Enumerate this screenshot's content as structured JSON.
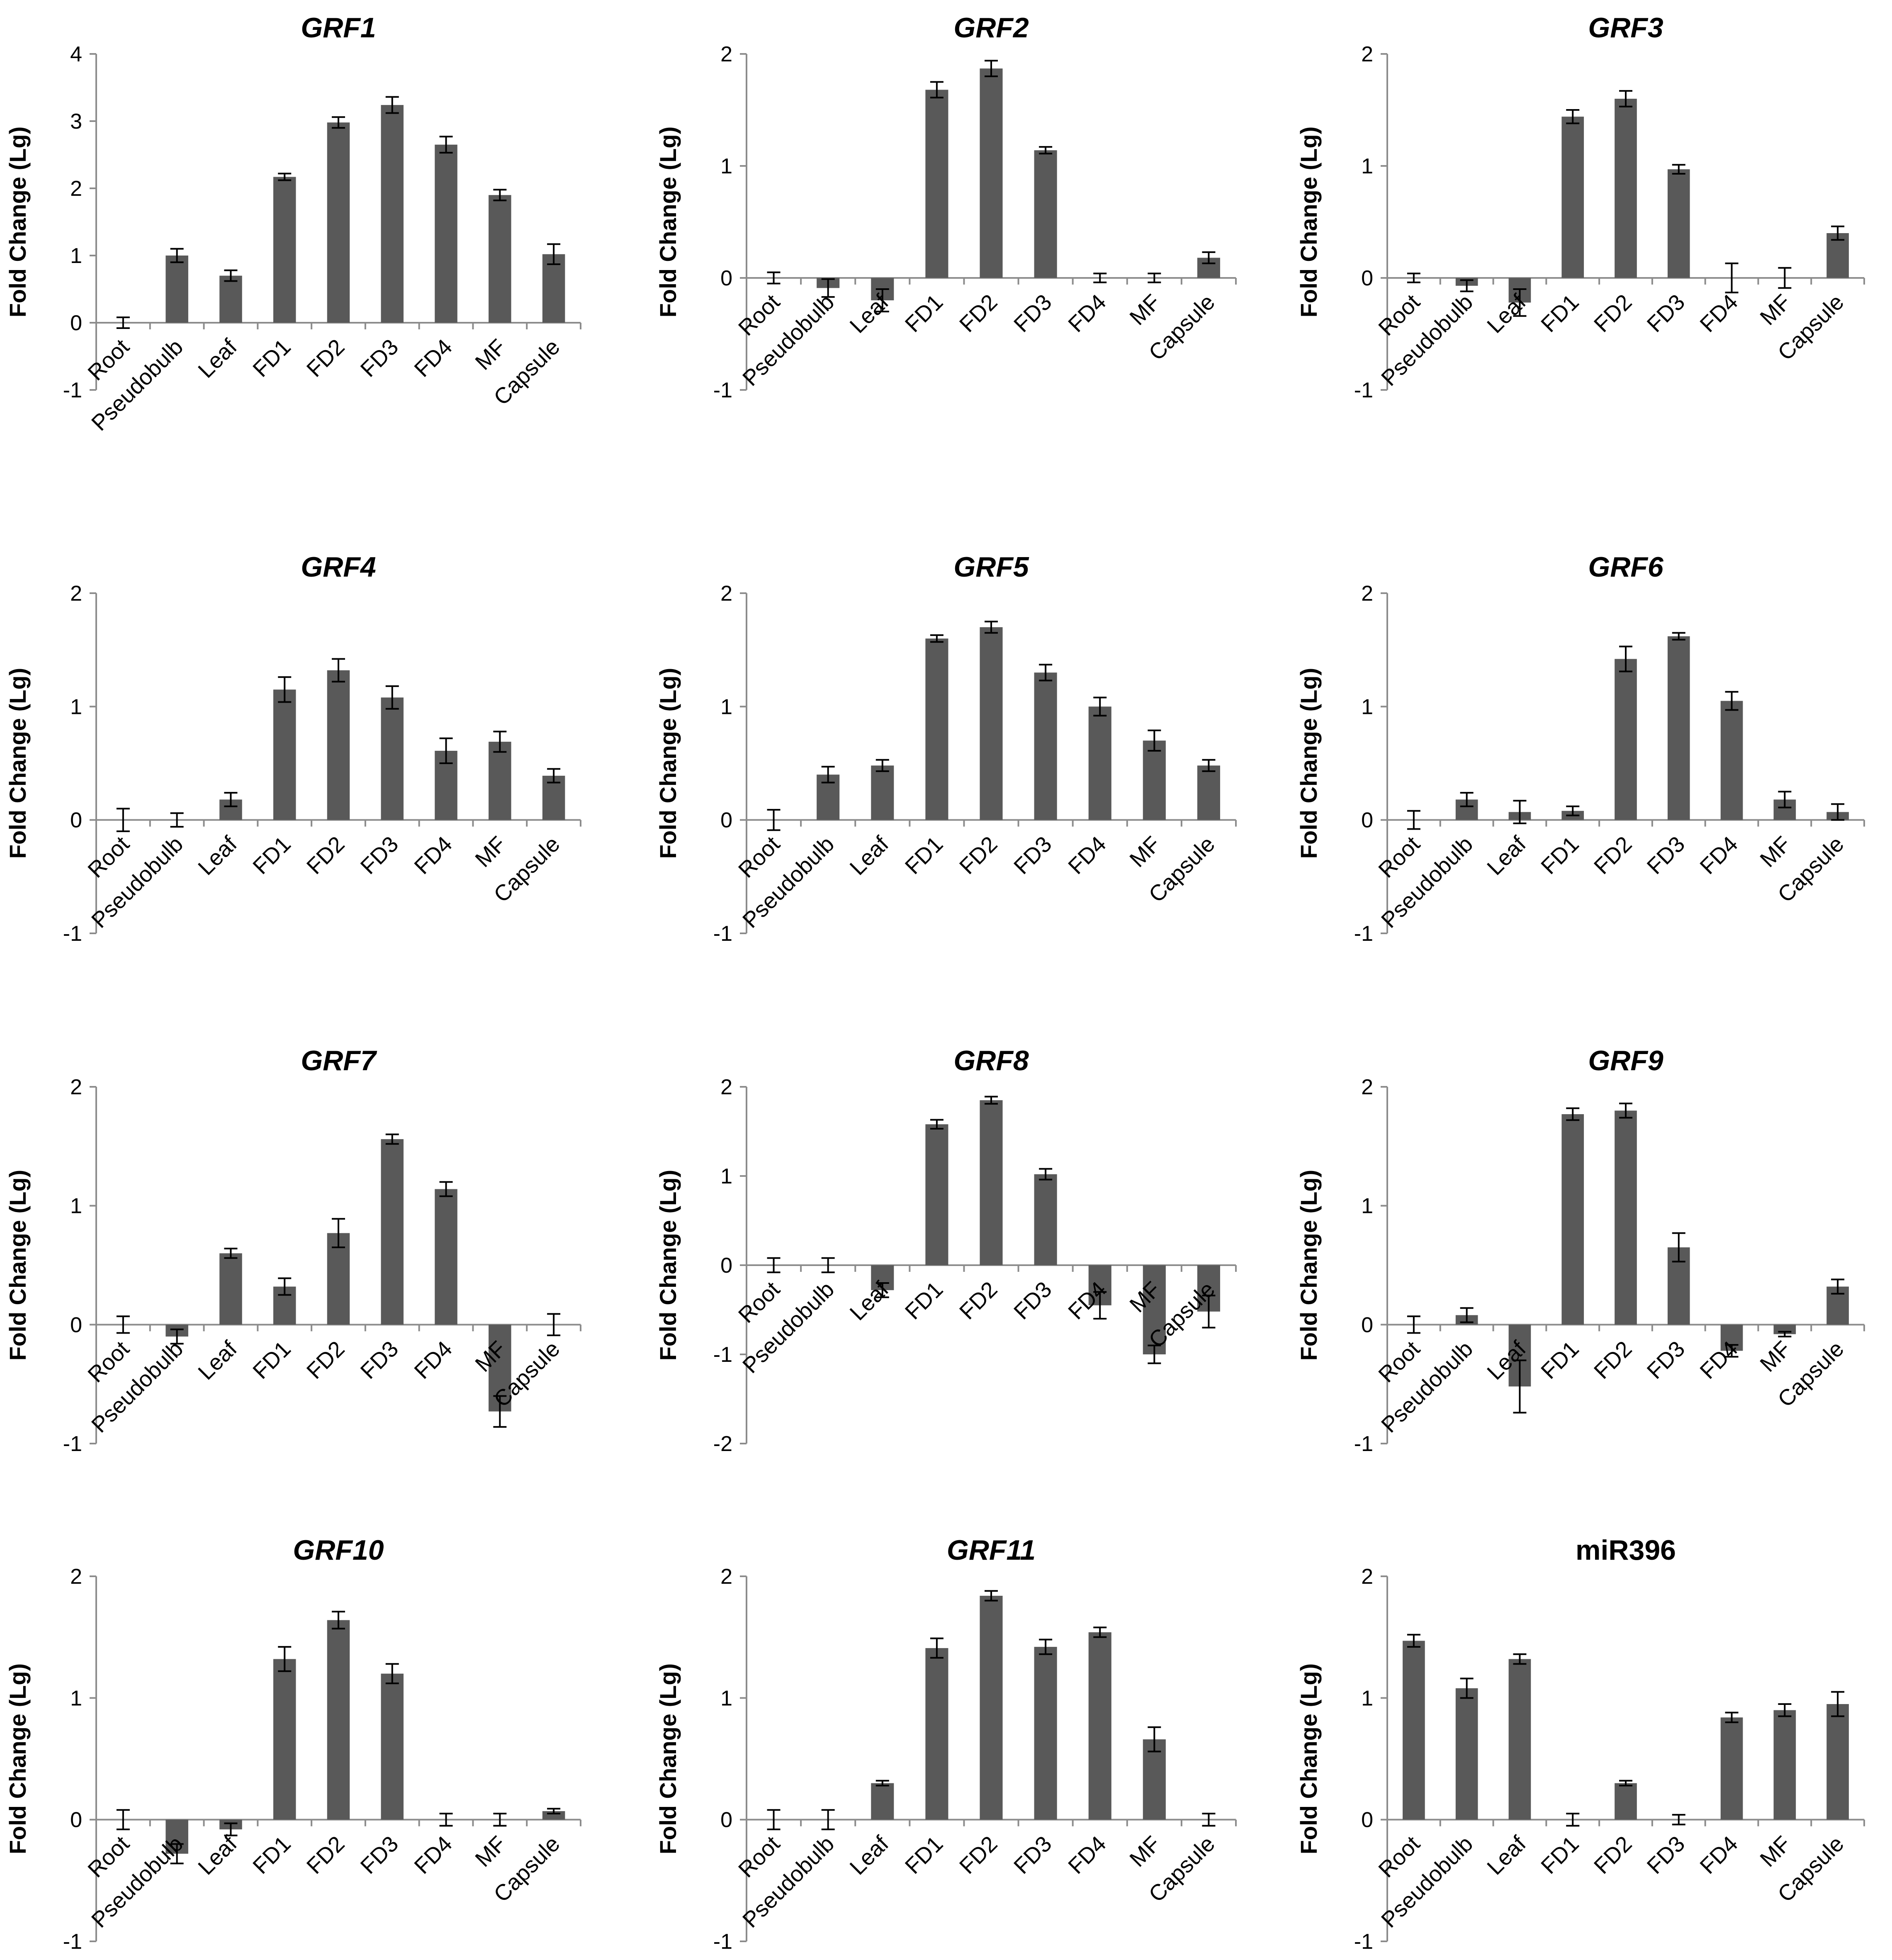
{
  "figure": {
    "categories": [
      "Root",
      "Pseudobulb",
      "Leaf",
      "FD1",
      "FD2",
      "FD3",
      "FD4",
      "MF",
      "Capsule"
    ],
    "ylabel": "Fold Change (Lg)",
    "bar_color": "#595959",
    "axis_color": "#8c8c8c"
  },
  "chart_data": [
    {
      "type": "bar",
      "title": "GRF1",
      "title_italic": true,
      "xlabel": "",
      "ylabel": "Fold Change (Lg)",
      "ylim": [
        -1,
        4
      ],
      "yticks": [
        -1,
        0,
        1,
        2,
        3,
        4
      ],
      "categories": [
        "Root",
        "Pseudobulb",
        "Leaf",
        "FD1",
        "FD2",
        "FD3",
        "FD4",
        "MF",
        "Capsule"
      ],
      "values": [
        0,
        1.0,
        0.7,
        2.17,
        2.98,
        3.24,
        2.65,
        1.9,
        1.02
      ],
      "errors": [
        0.08,
        0.1,
        0.08,
        0.05,
        0.08,
        0.12,
        0.12,
        0.08,
        0.15
      ]
    },
    {
      "type": "bar",
      "title": "GRF2",
      "title_italic": true,
      "xlabel": "",
      "ylabel": "Fold Change (Lg)",
      "ylim": [
        -1,
        2
      ],
      "yticks": [
        -1,
        0,
        1,
        2
      ],
      "categories": [
        "Root",
        "Pseudobulb",
        "Leaf",
        "FD1",
        "FD2",
        "FD3",
        "FD4",
        "MF",
        "Capsule"
      ],
      "values": [
        0,
        -0.09,
        -0.2,
        1.68,
        1.87,
        1.14,
        0,
        0,
        0.18
      ],
      "errors": [
        0.05,
        0.08,
        0.1,
        0.07,
        0.07,
        0.03,
        0.04,
        0.04,
        0.05
      ]
    },
    {
      "type": "bar",
      "title": "GRF3",
      "title_italic": true,
      "xlabel": "",
      "ylabel": "Fold Change (Lg)",
      "ylim": [
        -1,
        2
      ],
      "yticks": [
        -1,
        0,
        1,
        2
      ],
      "categories": [
        "Root",
        "Pseudobulb",
        "Leaf",
        "FD1",
        "FD2",
        "FD3",
        "FD4",
        "MF",
        "Capsule"
      ],
      "values": [
        0,
        -0.07,
        -0.22,
        1.44,
        1.6,
        0.97,
        0,
        0,
        0.4
      ],
      "errors": [
        0.04,
        0.05,
        0.12,
        0.06,
        0.07,
        0.04,
        0.13,
        0.09,
        0.06
      ]
    },
    {
      "type": "bar",
      "title": "GRF4",
      "title_italic": true,
      "xlabel": "",
      "ylabel": "Fold Change (Lg)",
      "ylim": [
        -1,
        2
      ],
      "yticks": [
        -1,
        0,
        1,
        2
      ],
      "categories": [
        "Root",
        "Pseudobulb",
        "Leaf",
        "FD1",
        "FD2",
        "FD3",
        "FD4",
        "MF",
        "Capsule"
      ],
      "values": [
        0,
        0,
        0.18,
        1.15,
        1.32,
        1.08,
        0.61,
        0.69,
        0.39
      ],
      "errors": [
        0.1,
        0.06,
        0.06,
        0.11,
        0.1,
        0.1,
        0.11,
        0.09,
        0.06
      ]
    },
    {
      "type": "bar",
      "title": "GRF5",
      "title_italic": true,
      "xlabel": "",
      "ylabel": "Fold Change (Lg)",
      "ylim": [
        -1,
        2
      ],
      "yticks": [
        -1,
        0,
        1,
        2
      ],
      "categories": [
        "Root",
        "Pseudobulb",
        "Leaf",
        "FD1",
        "FD2",
        "FD3",
        "FD4",
        "MF",
        "Capsule"
      ],
      "values": [
        0,
        0.4,
        0.48,
        1.6,
        1.7,
        1.3,
        1.0,
        0.7,
        0.48
      ],
      "errors": [
        0.09,
        0.07,
        0.05,
        0.03,
        0.05,
        0.07,
        0.08,
        0.09,
        0.05
      ]
    },
    {
      "type": "bar",
      "title": "GRF6",
      "title_italic": true,
      "xlabel": "",
      "ylabel": "Fold Change (Lg)",
      "ylim": [
        -1,
        2
      ],
      "yticks": [
        -1,
        0,
        1,
        2
      ],
      "categories": [
        "Root",
        "Pseudobulb",
        "Leaf",
        "FD1",
        "FD2",
        "FD3",
        "FD4",
        "MF",
        "Capsule"
      ],
      "values": [
        0,
        0.18,
        0.07,
        0.08,
        1.42,
        1.62,
        1.05,
        0.18,
        0.07
      ],
      "errors": [
        0.08,
        0.06,
        0.1,
        0.04,
        0.11,
        0.03,
        0.08,
        0.07,
        0.07
      ]
    },
    {
      "type": "bar",
      "title": "GRF7",
      "title_italic": true,
      "xlabel": "",
      "ylabel": "Fold Change (Lg)",
      "ylim": [
        -1,
        2
      ],
      "yticks": [
        -1,
        0,
        1,
        2
      ],
      "categories": [
        "Root",
        "Pseudobulb",
        "Leaf",
        "FD1",
        "FD2",
        "FD3",
        "FD4",
        "MF",
        "Capsule"
      ],
      "values": [
        0,
        -0.1,
        0.6,
        0.32,
        0.77,
        1.56,
        1.14,
        -0.73,
        0
      ],
      "errors": [
        0.07,
        0.06,
        0.04,
        0.07,
        0.12,
        0.04,
        0.06,
        0.13,
        0.09
      ]
    },
    {
      "type": "bar",
      "title": "GRF8",
      "title_italic": true,
      "xlabel": "",
      "ylabel": "Fold Change (Lg)",
      "ylim": [
        -2,
        2
      ],
      "yticks": [
        -2,
        -1,
        0,
        1,
        2
      ],
      "categories": [
        "Root",
        "Pseudobulb",
        "Leaf",
        "FD1",
        "FD2",
        "FD3",
        "FD4",
        "MF",
        "Capsule"
      ],
      "values": [
        0,
        0,
        -0.28,
        1.58,
        1.85,
        1.02,
        -0.45,
        -1.0,
        -0.52
      ],
      "errors": [
        0.08,
        0.08,
        0.08,
        0.05,
        0.04,
        0.06,
        0.15,
        0.1,
        0.18
      ]
    },
    {
      "type": "bar",
      "title": "GRF9",
      "title_italic": true,
      "xlabel": "",
      "ylabel": "Fold Change (Lg)",
      "ylim": [
        -1,
        2
      ],
      "yticks": [
        -1,
        0,
        1,
        2
      ],
      "categories": [
        "Root",
        "Pseudobulb",
        "Leaf",
        "FD1",
        "FD2",
        "FD3",
        "FD4",
        "MF",
        "Capsule"
      ],
      "values": [
        0,
        0.08,
        -0.52,
        1.77,
        1.8,
        0.65,
        -0.22,
        -0.08,
        0.32
      ],
      "errors": [
        0.07,
        0.06,
        0.22,
        0.05,
        0.06,
        0.12,
        0.05,
        0.02,
        0.06
      ]
    },
    {
      "type": "bar",
      "title": "GRF10",
      "title_italic": true,
      "xlabel": "",
      "ylabel": "Fold Change (Lg)",
      "ylim": [
        -1,
        2
      ],
      "yticks": [
        -1,
        0,
        1,
        2
      ],
      "categories": [
        "Root",
        "Pseudobulb",
        "Leaf",
        "FD1",
        "FD2",
        "FD3",
        "FD4",
        "MF",
        "Capsule"
      ],
      "values": [
        0,
        -0.28,
        -0.08,
        1.32,
        1.64,
        1.2,
        0,
        0,
        0.07
      ],
      "errors": [
        0.08,
        0.08,
        0.05,
        0.1,
        0.07,
        0.08,
        0.05,
        0.05,
        0.02
      ]
    },
    {
      "type": "bar",
      "title": "GRF11",
      "title_italic": true,
      "xlabel": "",
      "ylabel": "Fold Change (Lg)",
      "ylim": [
        -1,
        2
      ],
      "yticks": [
        -1,
        0,
        1,
        2
      ],
      "categories": [
        "Root",
        "Pseudobulb",
        "Leaf",
        "FD1",
        "FD2",
        "FD3",
        "FD4",
        "MF",
        "Capsule"
      ],
      "values": [
        0,
        0,
        0.3,
        1.41,
        1.84,
        1.42,
        1.54,
        0.66,
        0
      ],
      "errors": [
        0.08,
        0.08,
        0.02,
        0.08,
        0.04,
        0.06,
        0.04,
        0.1,
        0.05
      ]
    },
    {
      "type": "bar",
      "title": "miR396",
      "title_italic": false,
      "xlabel": "",
      "ylabel": "Fold Change (Lg)",
      "ylim": [
        -1,
        2
      ],
      "yticks": [
        -1,
        0,
        1,
        2
      ],
      "categories": [
        "Root",
        "Pseudobulb",
        "Leaf",
        "FD1",
        "FD2",
        "FD3",
        "FD4",
        "MF",
        "Capsule"
      ],
      "values": [
        1.47,
        1.08,
        1.32,
        0,
        0.3,
        0,
        0.84,
        0.9,
        0.95
      ],
      "errors": [
        0.05,
        0.08,
        0.04,
        0.05,
        0.02,
        0.04,
        0.04,
        0.05,
        0.1
      ]
    }
  ]
}
